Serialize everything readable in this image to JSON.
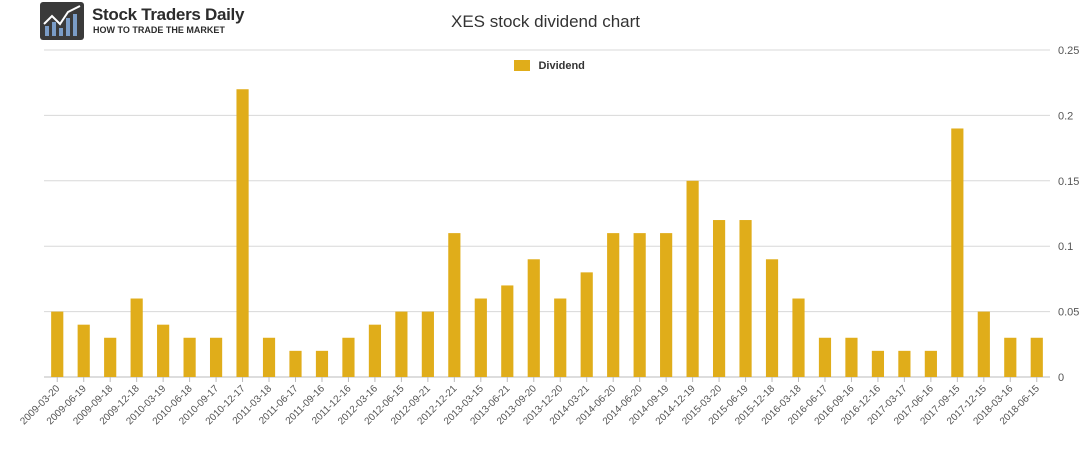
{
  "logo": {
    "name": "Stock Traders Daily",
    "tagline": "HOW TO TRADE THE MARKET"
  },
  "chart_data": {
    "type": "bar",
    "title": "XES stock dividend chart",
    "xlabel": "",
    "ylabel": "",
    "ylim": [
      0,
      0.25
    ],
    "yticks": [
      "0",
      "0.05",
      "0.1",
      "0.15",
      "0.2",
      "0.25"
    ],
    "grid": true,
    "legend_position": "top-center",
    "color": "#e0ad1a",
    "categories": [
      "2009-03-20",
      "2009-06-19",
      "2009-09-18",
      "2009-12-18",
      "2010-03-19",
      "2010-06-18",
      "2010-09-17",
      "2010-12-17",
      "2011-03-18",
      "2011-06-17",
      "2011-09-16",
      "2011-12-16",
      "2012-03-16",
      "2012-06-15",
      "2012-09-21",
      "2012-12-21",
      "2013-03-15",
      "2013-06-21",
      "2013-09-20",
      "2013-12-20",
      "2014-03-21",
      "2014-06-20",
      "2014-06-20",
      "2014-09-19",
      "2014-12-19",
      "2015-03-20",
      "2015-06-19",
      "2015-12-18",
      "2016-03-18",
      "2016-06-17",
      "2016-09-16",
      "2016-12-16",
      "2017-03-17",
      "2017-06-16",
      "2017-09-15",
      "2017-12-15",
      "2018-03-16",
      "2018-06-15"
    ],
    "series": [
      {
        "name": "Dividend",
        "values": [
          0.05,
          0.04,
          0.03,
          0.06,
          0.04,
          0.03,
          0.03,
          0.22,
          0.03,
          0.02,
          0.02,
          0.03,
          0.04,
          0.05,
          0.05,
          0.11,
          0.06,
          0.07,
          0.09,
          0.06,
          0.08,
          0.11,
          0.11,
          0.11,
          0.15,
          0.12,
          0.12,
          0.09,
          0.06,
          0.03,
          0.03,
          0.02,
          0.02,
          0.02,
          0.19,
          0.05,
          0.03,
          0.03
        ]
      }
    ]
  }
}
